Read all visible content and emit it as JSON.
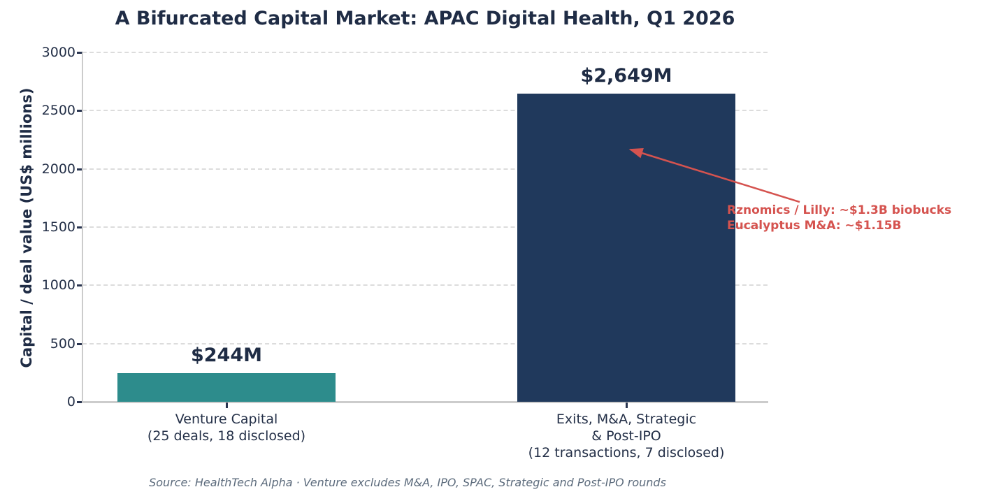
{
  "chart_data": {
    "type": "bar",
    "title": "A Bifurcated Capital Market: APAC Digital Health, Q1 2026",
    "xlabel": "",
    "ylabel": "Capital / deal value (US$ millions)",
    "ylim": [
      0,
      3000
    ],
    "yticks": [
      0,
      500,
      1000,
      1500,
      2000,
      2500,
      3000
    ],
    "grid": "horizontal-dashed",
    "legend": "none",
    "categories": [
      "Venture Capital\n(25 deals, 18 disclosed)",
      "Exits, M&A, Strategic\n& Post-IPO\n(12 transactions, 7 disclosed)"
    ],
    "values": [
      244,
      2649
    ],
    "bar_value_labels": [
      "$244M",
      "$2,649M"
    ],
    "bar_colors": [
      "#2d8c8c",
      "#20395c"
    ],
    "annotation": {
      "lines": [
        "Rznomics / Lilly: ~$1.3B biobucks",
        "Eucalyptus M&A: ~$1.15B"
      ],
      "color": "#d5534f",
      "arrow_from": [
        1144,
        289
      ],
      "arrow_to": [
        902,
        214
      ]
    },
    "source": "Source: HealthTech Alpha · Venture excludes M&A, IPO, SPAC, Strategic and Post-IPO rounds"
  },
  "colors": {
    "title_text": "#1f2c45",
    "axis_text": "#232f47",
    "grid": "#dcdcdc",
    "spine": "#cccccc",
    "tick_mark": "#2a3550",
    "bar_teal": "#2d8c8c",
    "bar_navy": "#20395c",
    "annotation_red": "#d5534f",
    "source_gray": "#5c6b7c"
  }
}
